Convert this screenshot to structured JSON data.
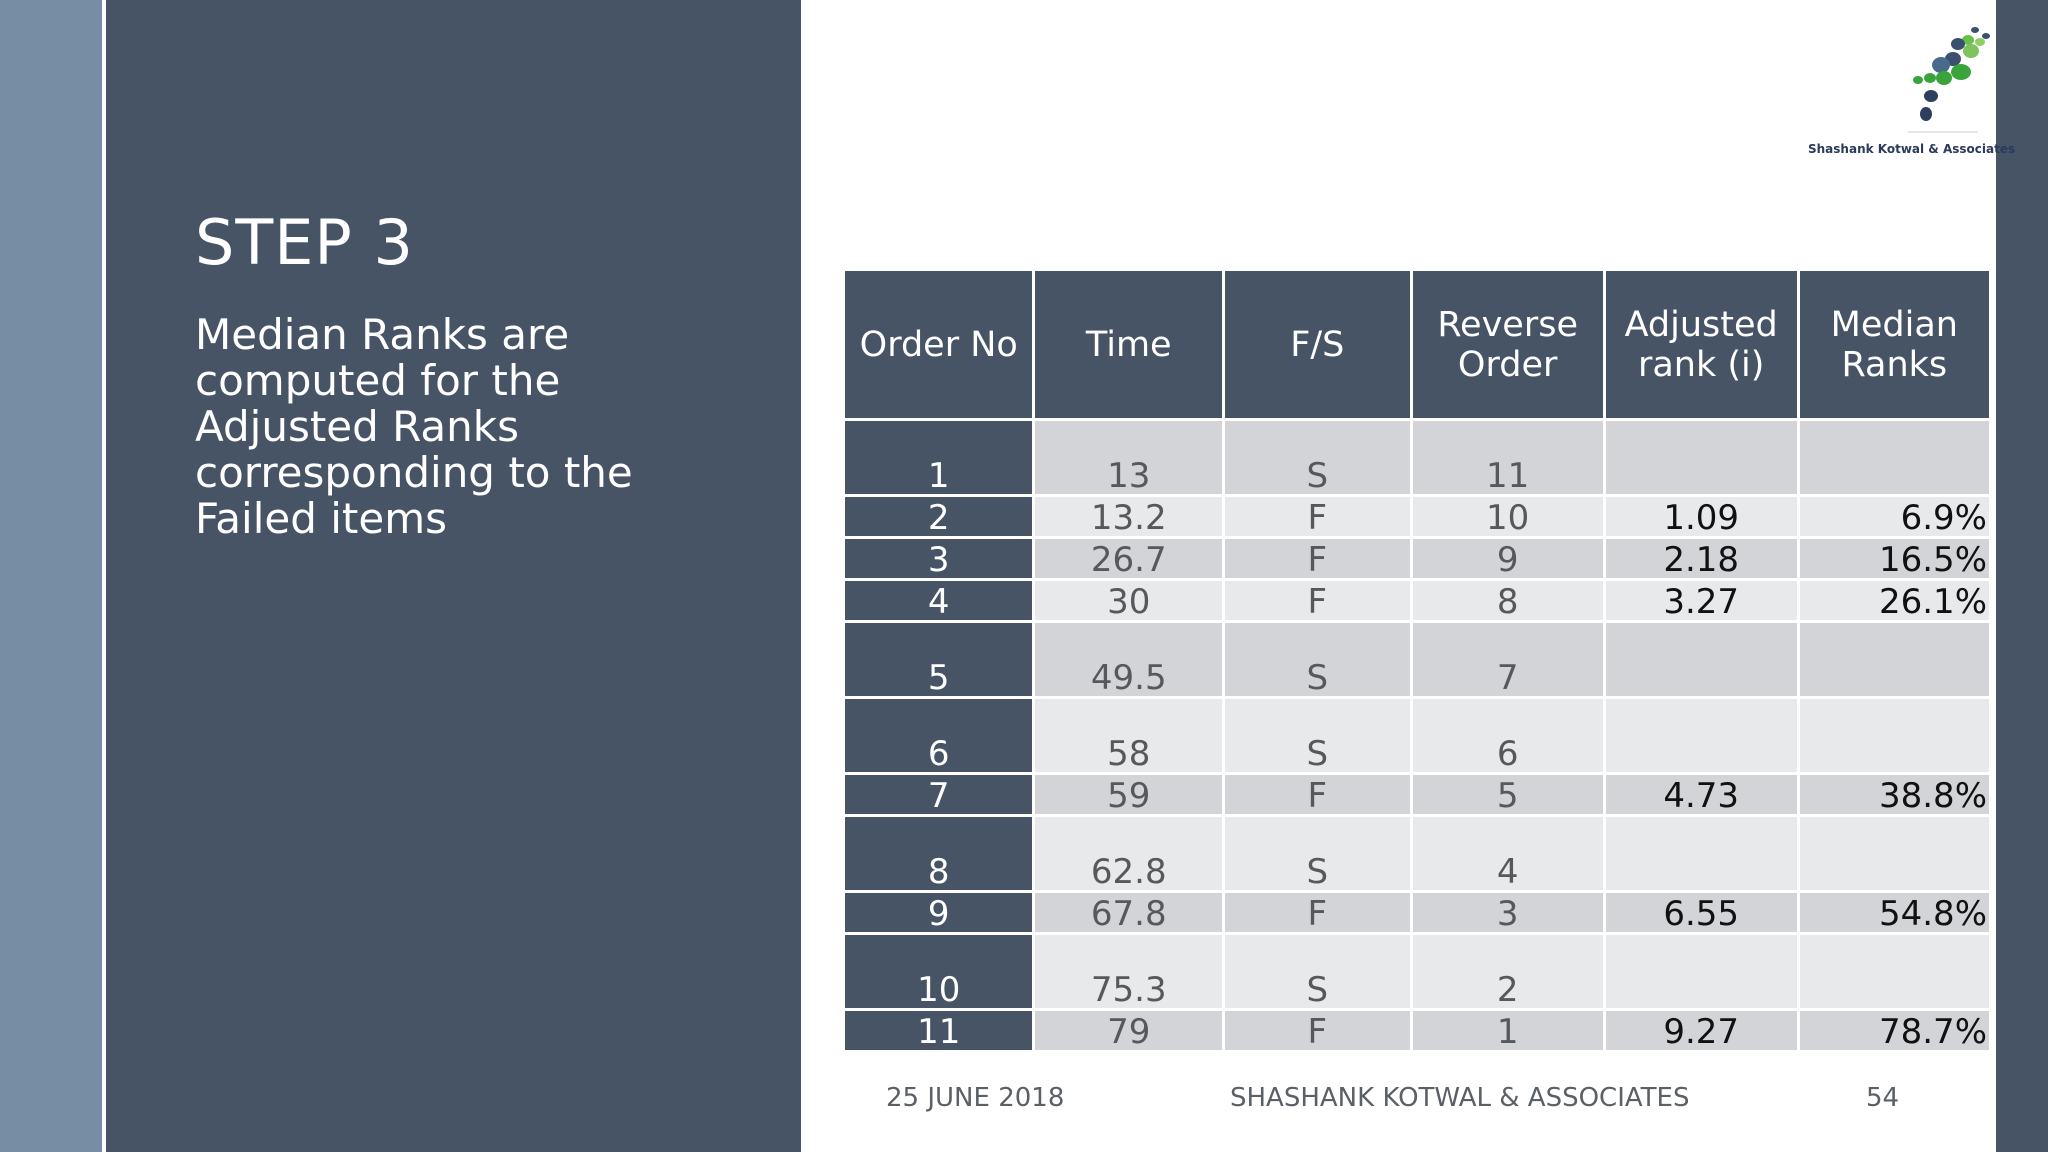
{
  "slide": {
    "title": "STEP 3",
    "body": "Median Ranks are computed for the Adjusted Ranks corresponding to the Failed items",
    "logo_text": "Shashank Kotwal & Associates"
  },
  "table": {
    "headers": [
      "Order No",
      "Time",
      "F/S",
      "Reverse Order",
      "Adjusted rank (i)",
      "Median Ranks"
    ],
    "rows": [
      {
        "order": "1",
        "time": "13",
        "fs": "S",
        "reverse": "11",
        "adjusted": "",
        "median": ""
      },
      {
        "order": "2",
        "time": "13.2",
        "fs": "F",
        "reverse": "10",
        "adjusted": "1.09",
        "median": "6.9%"
      },
      {
        "order": "3",
        "time": "26.7",
        "fs": "F",
        "reverse": "9",
        "adjusted": "2.18",
        "median": "16.5%"
      },
      {
        "order": "4",
        "time": "30",
        "fs": "F",
        "reverse": "8",
        "adjusted": "3.27",
        "median": "26.1%"
      },
      {
        "order": "5",
        "time": "49.5",
        "fs": "S",
        "reverse": "7",
        "adjusted": "",
        "median": ""
      },
      {
        "order": "6",
        "time": "58",
        "fs": "S",
        "reverse": "6",
        "adjusted": "",
        "median": ""
      },
      {
        "order": "7",
        "time": "59",
        "fs": "F",
        "reverse": "5",
        "adjusted": "4.73",
        "median": "38.8%"
      },
      {
        "order": "8",
        "time": "62.8",
        "fs": "S",
        "reverse": "4",
        "adjusted": "",
        "median": ""
      },
      {
        "order": "9",
        "time": "67.8",
        "fs": "F",
        "reverse": "3",
        "adjusted": "6.55",
        "median": "54.8%"
      },
      {
        "order": "10",
        "time": "75.3",
        "fs": "S",
        "reverse": "2",
        "adjusted": "",
        "median": ""
      },
      {
        "order": "11",
        "time": "79",
        "fs": "F",
        "reverse": "1",
        "adjusted": "9.27",
        "median": "78.7%"
      }
    ]
  },
  "footer": {
    "date": "25 JUNE 2018",
    "company": "SHASHANK KOTWAL & ASSOCIATES",
    "page": "54"
  },
  "colors": {
    "panel": "#465465",
    "strip": "#778da3",
    "row_dark": "#d3d4d7",
    "row_light": "#e8e9eb"
  }
}
